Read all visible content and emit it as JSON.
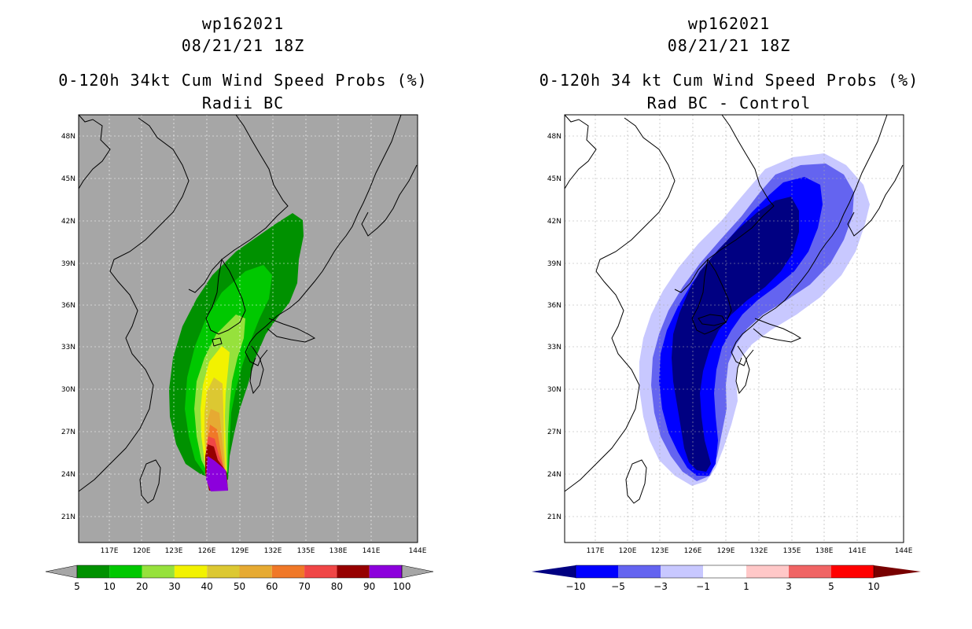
{
  "panels": [
    {
      "storm_id": "wp162021",
      "date_time": "08/21/21 18Z",
      "title": "0-120h 34kt Cum Wind Speed Probs (%)",
      "subtitle": "Radii BC",
      "map_background": "#a6a6a6",
      "lat_labels": [
        "48N",
        "45N",
        "42N",
        "39N",
        "36N",
        "33N",
        "30N",
        "27N",
        "24N",
        "21N"
      ],
      "lon_labels": [
        "117E",
        "120E",
        "123E",
        "126E",
        "129E",
        "132E",
        "135E",
        "138E",
        "141E",
        "144E"
      ],
      "colorbar": {
        "labels": [
          "5",
          "10",
          "20",
          "30",
          "40",
          "50",
          "60",
          "70",
          "80",
          "90",
          "100"
        ],
        "colors": [
          "#009100",
          "#00c800",
          "#96e13c",
          "#f2f200",
          "#dcc832",
          "#e6aa32",
          "#f07828",
          "#f04646",
          "#960000",
          "#8c00dc"
        ],
        "end_color": "#a6a6a6"
      }
    },
    {
      "storm_id": "wp162021",
      "date_time": "08/21/21 18Z",
      "title": "0-120h 34 kt Cum Wind Speed Probs (%)",
      "subtitle": "Rad BC - Control",
      "map_background": "#ffffff",
      "lat_labels": [
        "48N",
        "45N",
        "42N",
        "39N",
        "36N",
        "33N",
        "30N",
        "27N",
        "24N",
        "21N"
      ],
      "lon_labels": [
        "117E",
        "120E",
        "123E",
        "126E",
        "129E",
        "132E",
        "135E",
        "138E",
        "141E",
        "144E"
      ],
      "colorbar": {
        "labels": [
          "−10",
          "−5",
          "−3",
          "−1",
          "1",
          "3",
          "5",
          "10"
        ],
        "colors": [
          "#000082",
          "#0000ff",
          "#6464f0",
          "#c8c8ff",
          "#ffffff",
          "#ffc8c8",
          "#f06464",
          "#ff0000",
          "#780000"
        ]
      }
    }
  ]
}
